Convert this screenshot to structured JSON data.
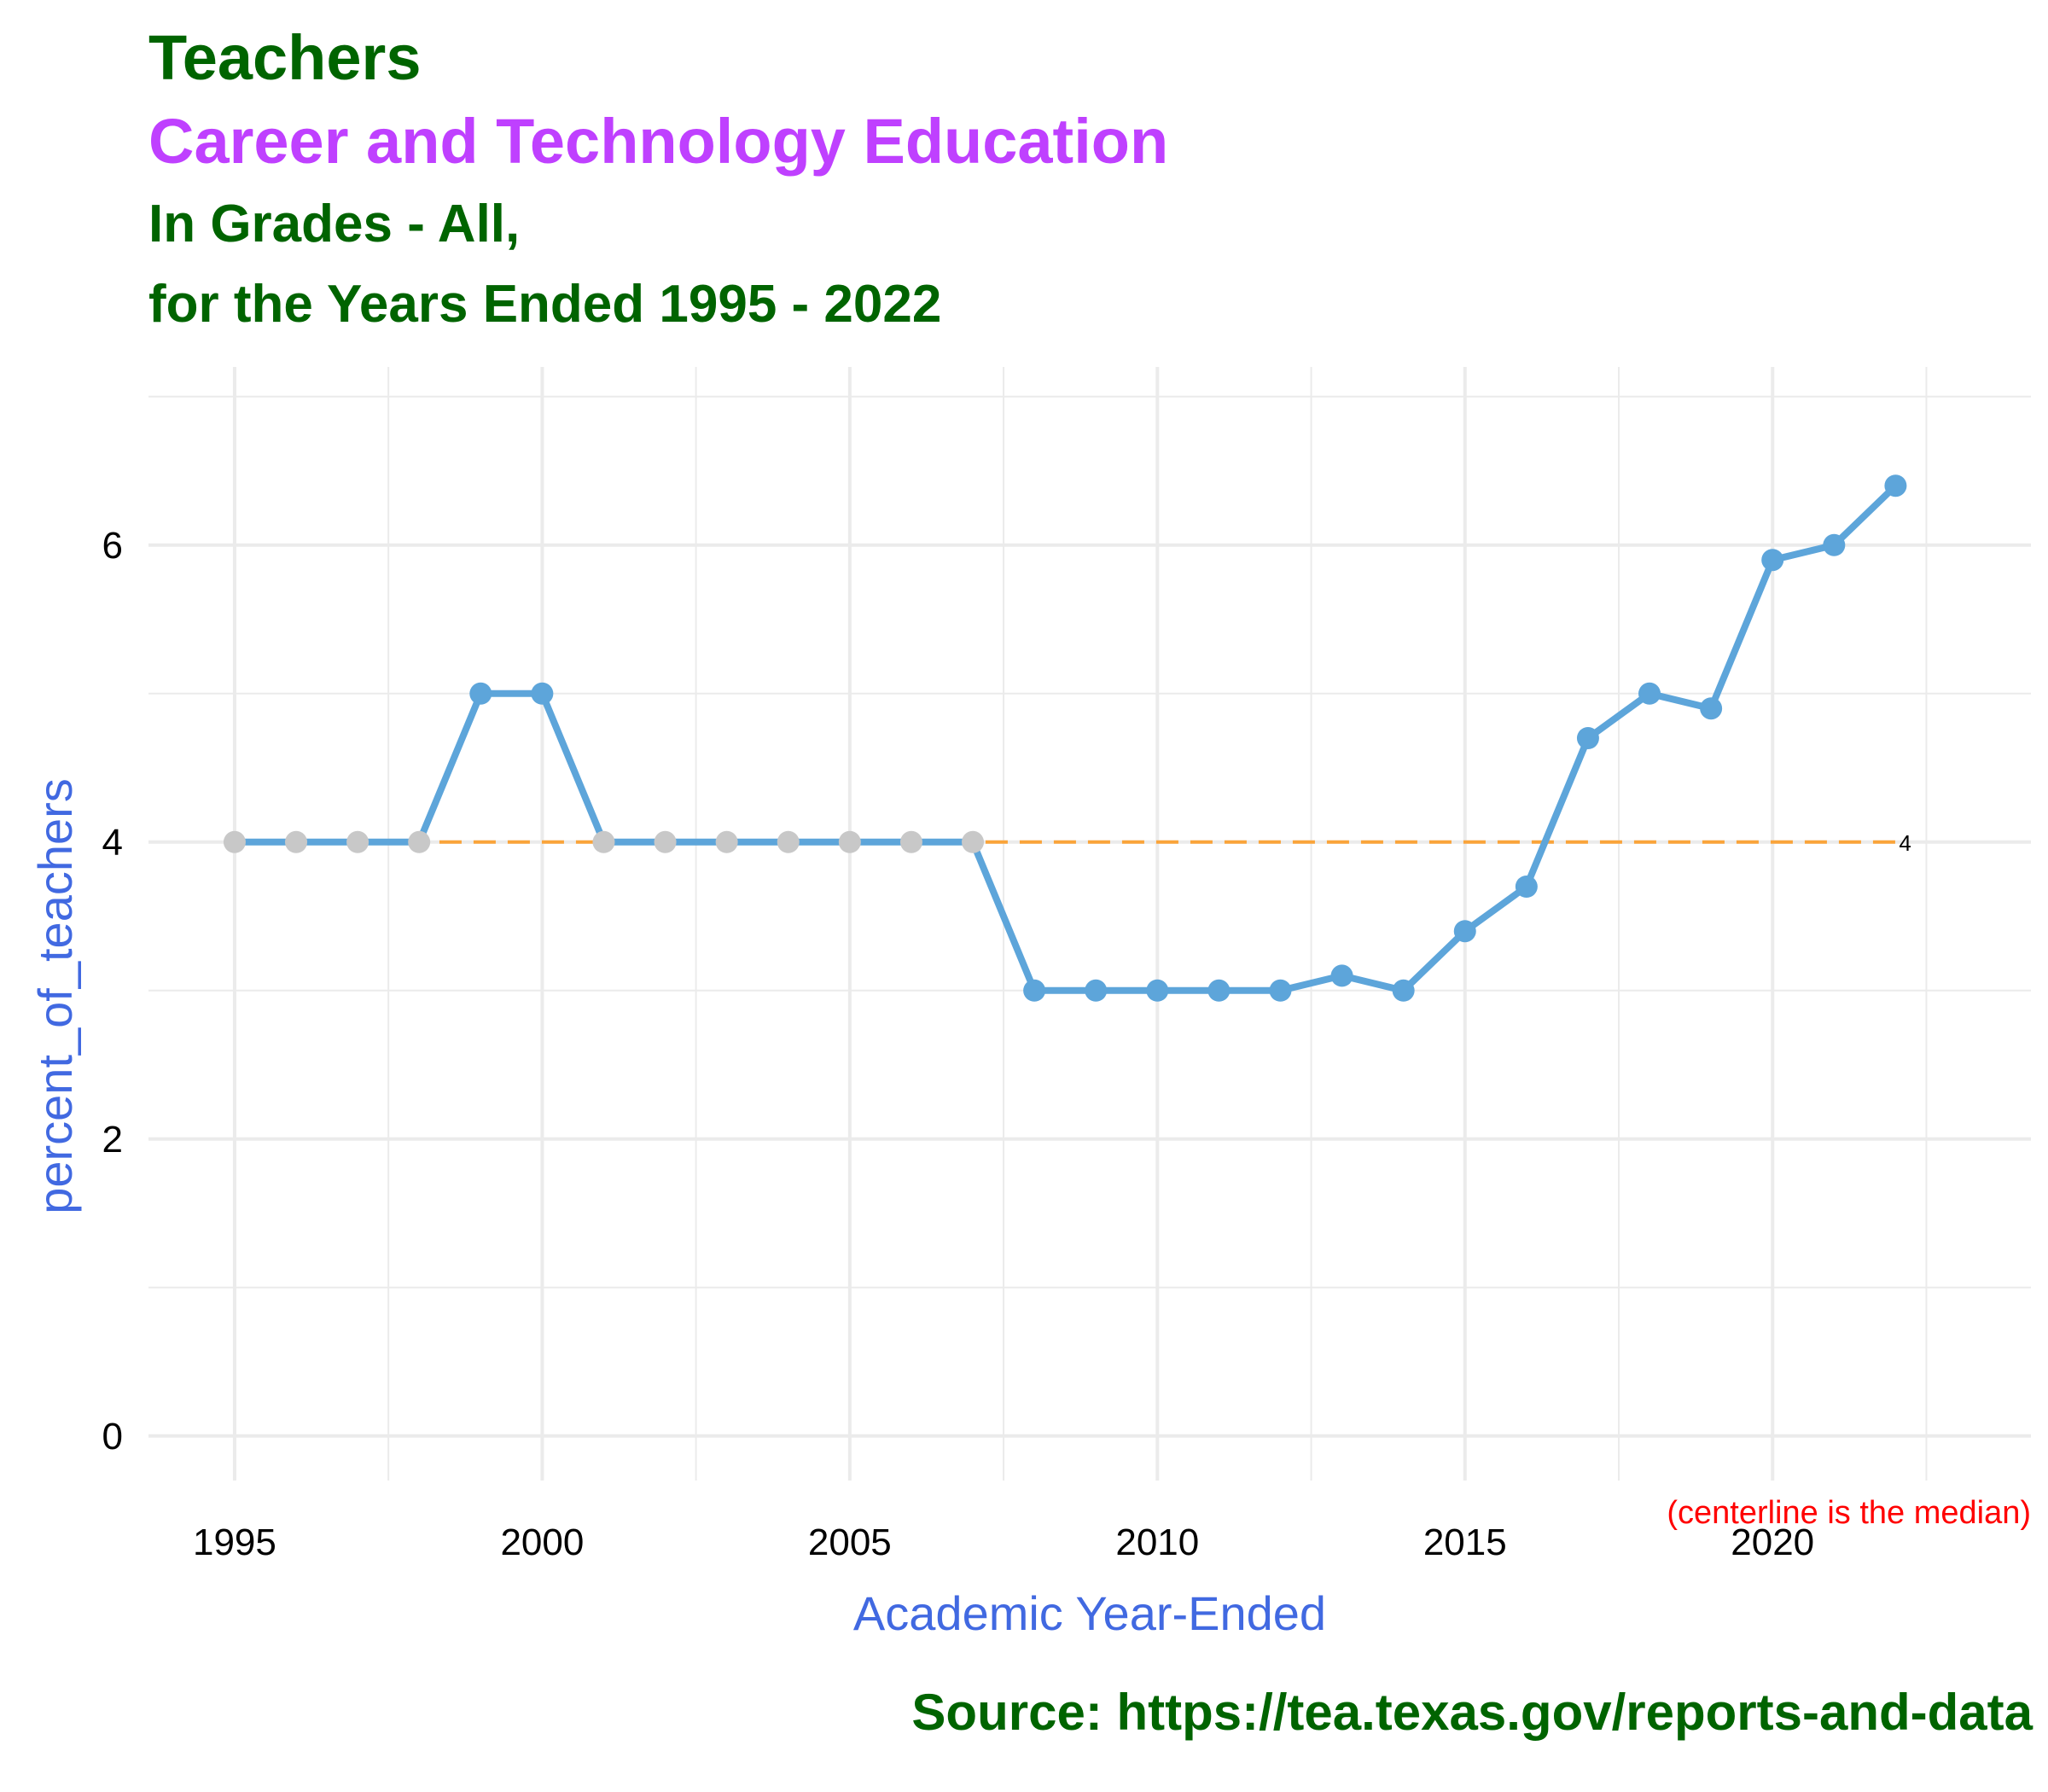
{
  "titles": {
    "line1": "Teachers",
    "line2": "Career and Technology Education",
    "line3": "In Grades - All,",
    "line4": "for the Years Ended 1995 - 2022"
  },
  "source": "Source:  https://tea.texas.gov/reports-and-data",
  "chart_data": {
    "type": "line",
    "xlabel": "Academic Year-Ended",
    "ylabel": "percent_of_teachers",
    "xlim": [
      1993.6,
      2024.2
    ],
    "ylim": [
      -0.3,
      7.2
    ],
    "x_ticks": [
      1995,
      2000,
      2005,
      2010,
      2015,
      2020
    ],
    "y_ticks": [
      0,
      2,
      4,
      6
    ],
    "grid": true,
    "series": [
      {
        "x": [
          1995,
          1996,
          1997,
          1998,
          1999,
          2000,
          2001,
          2002,
          2003,
          2004,
          2005,
          2006,
          2007,
          2008,
          2009,
          2010,
          2011,
          2012,
          2013,
          2014,
          2015,
          2016,
          2017,
          2018,
          2019,
          2020,
          2021,
          2022
        ],
        "values": [
          4,
          4,
          4,
          4,
          5,
          5,
          4,
          4,
          4,
          4,
          4,
          4,
          4,
          3,
          3,
          3,
          3,
          3,
          3.1,
          3,
          3.4,
          3.7,
          4.7,
          5,
          4.9,
          5.9,
          6,
          6.4
        ],
        "point_color": [
          "#C8C8C8",
          "#C8C8C8",
          "#C8C8C8",
          "#C8C8C8",
          "#5DA5DA",
          "#5DA5DA",
          "#C8C8C8",
          "#C8C8C8",
          "#C8C8C8",
          "#C8C8C8",
          "#C8C8C8",
          "#C8C8C8",
          "#C8C8C8",
          "#5DA5DA",
          "#5DA5DA",
          "#5DA5DA",
          "#5DA5DA",
          "#5DA5DA",
          "#5DA5DA",
          "#5DA5DA",
          "#5DA5DA",
          "#5DA5DA",
          "#5DA5DA",
          "#5DA5DA",
          "#5DA5DA",
          "#5DA5DA",
          "#5DA5DA",
          "#5DA5DA"
        ]
      }
    ],
    "centerline": {
      "value": 4,
      "x_start": 1995,
      "x_end": 2022,
      "label": "4",
      "color": "#FAA43A"
    },
    "annotation": "(centerline is the median)",
    "colors": {
      "line": "#5DA5DA",
      "grid": "#EBEBEB",
      "title_green": "#006400",
      "subtitle_purple": "#BF40FF",
      "axis_title": "#4169E1",
      "note": "#FF0000"
    }
  }
}
